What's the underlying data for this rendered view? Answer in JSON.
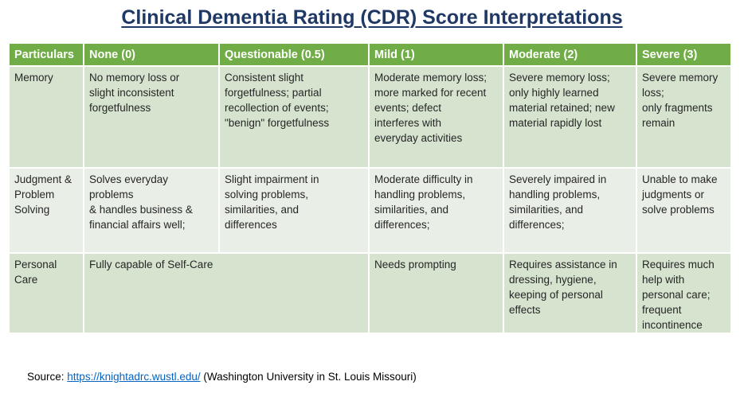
{
  "title": "Clinical Dementia Rating (CDR) Score Interpretations",
  "table": {
    "headers": [
      "Particulars",
      "None (0)",
      "Questionable (0.5)",
      "Mild (1)",
      "Moderate (2)",
      "Severe (3)"
    ],
    "rows": {
      "memory": {
        "particular": "Memory",
        "none": "No memory loss or\nslight inconsistent\nforgetfulness",
        "questionable": "Consistent slight\nforgetfulness; partial\nrecollection of events;\n\"benign\" forgetfulness",
        "mild": "Moderate memory loss;\nmore marked for recent\nevents; defect\ninterferes with\neveryday activities",
        "moderate": "Severe memory loss;\nonly highly learned\nmaterial retained; new\nmaterial rapidly lost",
        "severe": "Severe memory\nloss;\nonly fragments\nremain"
      },
      "judgment": {
        "particular": "Judgment &\nProblem\nSolving",
        "none": "Solves everyday\nproblems\n& handles business &\nfinancial affairs well;",
        "questionable": "Slight impairment in\nsolving problems,\nsimilarities, and\ndifferences",
        "mild": "Moderate difficulty in\nhandling problems,\nsimilarities, and\ndifferences;",
        "moderate": "Severely impaired in\nhandling problems,\nsimilarities, and\ndifferences;",
        "severe": "Unable to make\njudgments or\nsolve problems"
      },
      "personal_care": {
        "particular": "Personal\nCare",
        "none_questionable": "Fully capable of Self-Care",
        "mild": "Needs prompting",
        "moderate": "Requires assistance in\ndressing, hygiene,\nkeeping of personal\neffects",
        "severe": "Requires much\nhelp with\npersonal care;\nfrequent\nincontinence"
      }
    }
  },
  "source": {
    "label": "Source:",
    "link_text": "https://knightadrc.wustl.edu/",
    "suffix": "(Washington University in St. Louis Missouri)"
  },
  "colors": {
    "title": "#1f3864",
    "header_bg": "#70ad47",
    "row_dark": "#d5e3cf",
    "row_light": "#e9efe7",
    "link": "#0563c1"
  }
}
